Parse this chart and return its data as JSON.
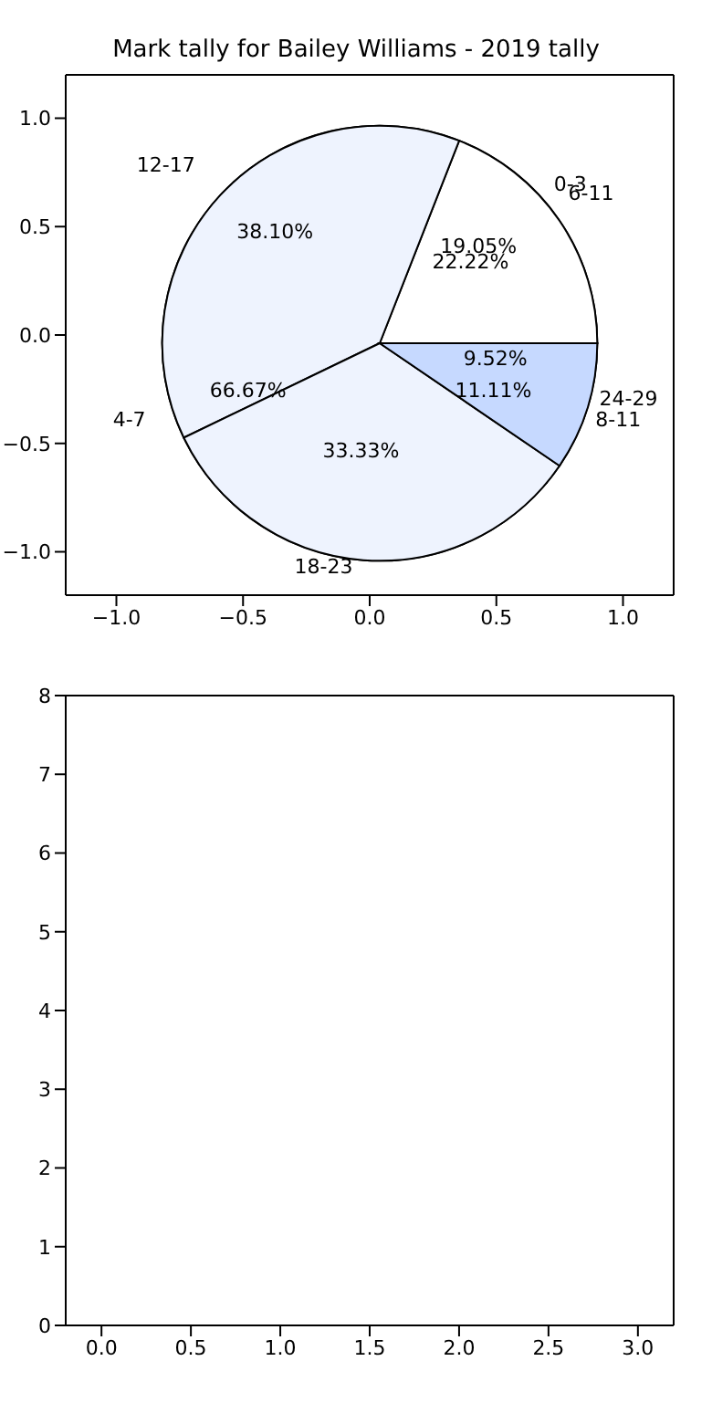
{
  "chart_data": [
    {
      "type": "scatter",
      "title": "Mark tally for Bailey Williams - 2019 tally",
      "xlim": [
        -1.2,
        1.2
      ],
      "ylim": [
        -1.2,
        1.2
      ],
      "xticks": [
        {
          "value": -1,
          "label": "−1.0"
        },
        {
          "value": -0.5,
          "label": "−0.5"
        },
        {
          "value": 0,
          "label": "0.0"
        },
        {
          "value": 0.5,
          "label": "0.5"
        },
        {
          "value": 1,
          "label": "1.0"
        }
      ],
      "yticks": [
        {
          "value": -1,
          "label": "−1.0"
        },
        {
          "value": -0.5,
          "label": "−0.5"
        },
        {
          "value": 0,
          "label": "0.0"
        },
        {
          "value": 0.5,
          "label": "0.5"
        },
        {
          "value": 1,
          "label": "1.0"
        }
      ]
    },
    {
      "type": "pie",
      "categories": [
        "0-3",
        "4-7",
        "8-11"
      ],
      "values": [
        22.22,
        66.67,
        11.11
      ],
      "value_labels": [
        "22.22%",
        "66.67%",
        "11.11%"
      ],
      "colors": [
        "#ffffff",
        "#eef3fe",
        "#c6d9ff"
      ]
    },
    {
      "type": "pie",
      "categories": [
        "6-11",
        "12-17",
        "18-23",
        "24-29"
      ],
      "values": [
        19.05,
        38.1,
        33.33,
        9.52
      ],
      "value_labels": [
        "19.05%",
        "38.10%",
        "33.33%",
        "9.52%"
      ],
      "colors": [
        "#ffffff",
        "#eef3fe",
        "#eef3fe",
        "#c6d9ff"
      ]
    },
    {
      "type": "scatter",
      "xlim": [
        -0.2,
        3.2
      ],
      "ylim": [
        0,
        8
      ],
      "xticks": [
        {
          "value": 0,
          "label": "0.0"
        },
        {
          "value": 0.5,
          "label": "0.5"
        },
        {
          "value": 1,
          "label": "1.0"
        },
        {
          "value": 1.5,
          "label": "1.5"
        },
        {
          "value": 2,
          "label": "2.0"
        },
        {
          "value": 2.5,
          "label": "2.5"
        },
        {
          "value": 3,
          "label": "3.0"
        }
      ],
      "yticks": [
        0,
        1,
        2,
        3,
        4,
        5,
        6,
        7,
        8
      ]
    }
  ]
}
